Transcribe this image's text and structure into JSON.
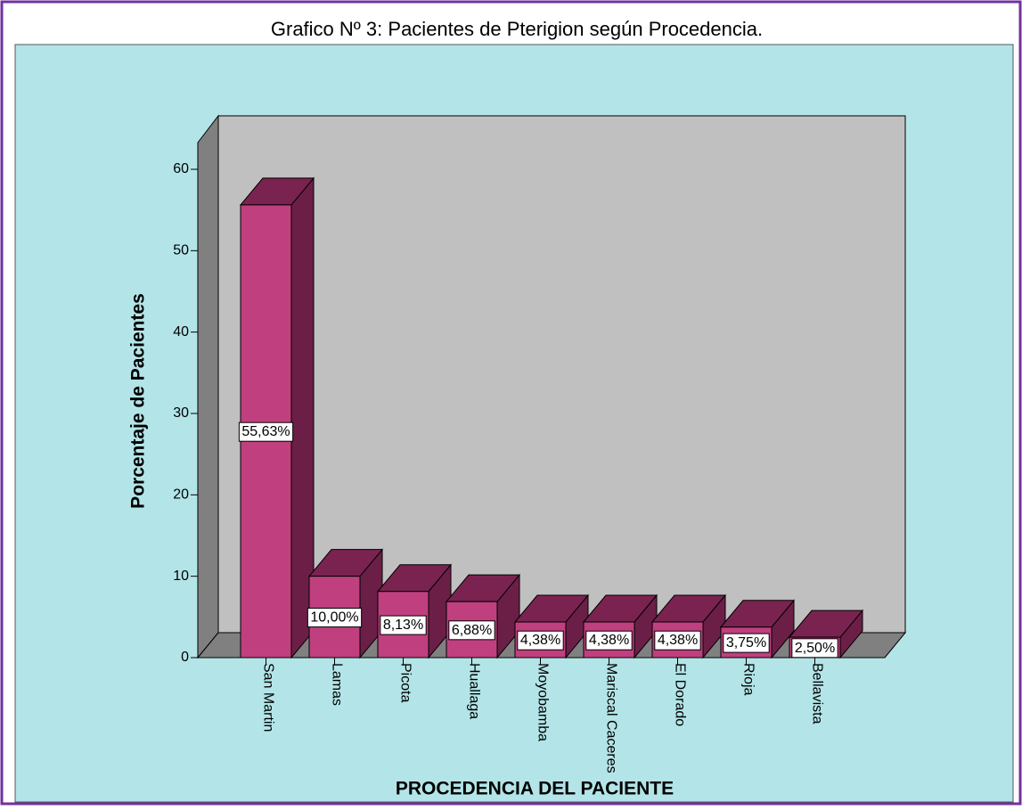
{
  "chart_data": {
    "type": "bar3d",
    "title": "Grafico Nº 3: Pacientes de Pterigion según Procedencia.",
    "x_label": "PROCEDENCIA DEL PACIENTE",
    "y_label": "Porcentaje de Pacientes",
    "categories": [
      "San Martin",
      "Lamas",
      "Picota",
      "Huallaga",
      "Moyobamba",
      "Mariscal Caceres",
      "El Dorado",
      "Rioja",
      "Bellavista"
    ],
    "values": [
      55.63,
      10.0,
      8.13,
      6.88,
      4.38,
      4.38,
      4.38,
      3.75,
      2.5
    ],
    "value_labels": [
      "55,63%",
      "10,00%",
      "8,13%",
      "6,88%",
      "4,38%",
      "4,38%",
      "4,38%",
      "3,75%",
      "2,50%"
    ],
    "color": "#c0407f",
    "ylim": [
      0,
      60
    ],
    "yticks": [
      0,
      10,
      20,
      30,
      40,
      50,
      60
    ]
  }
}
